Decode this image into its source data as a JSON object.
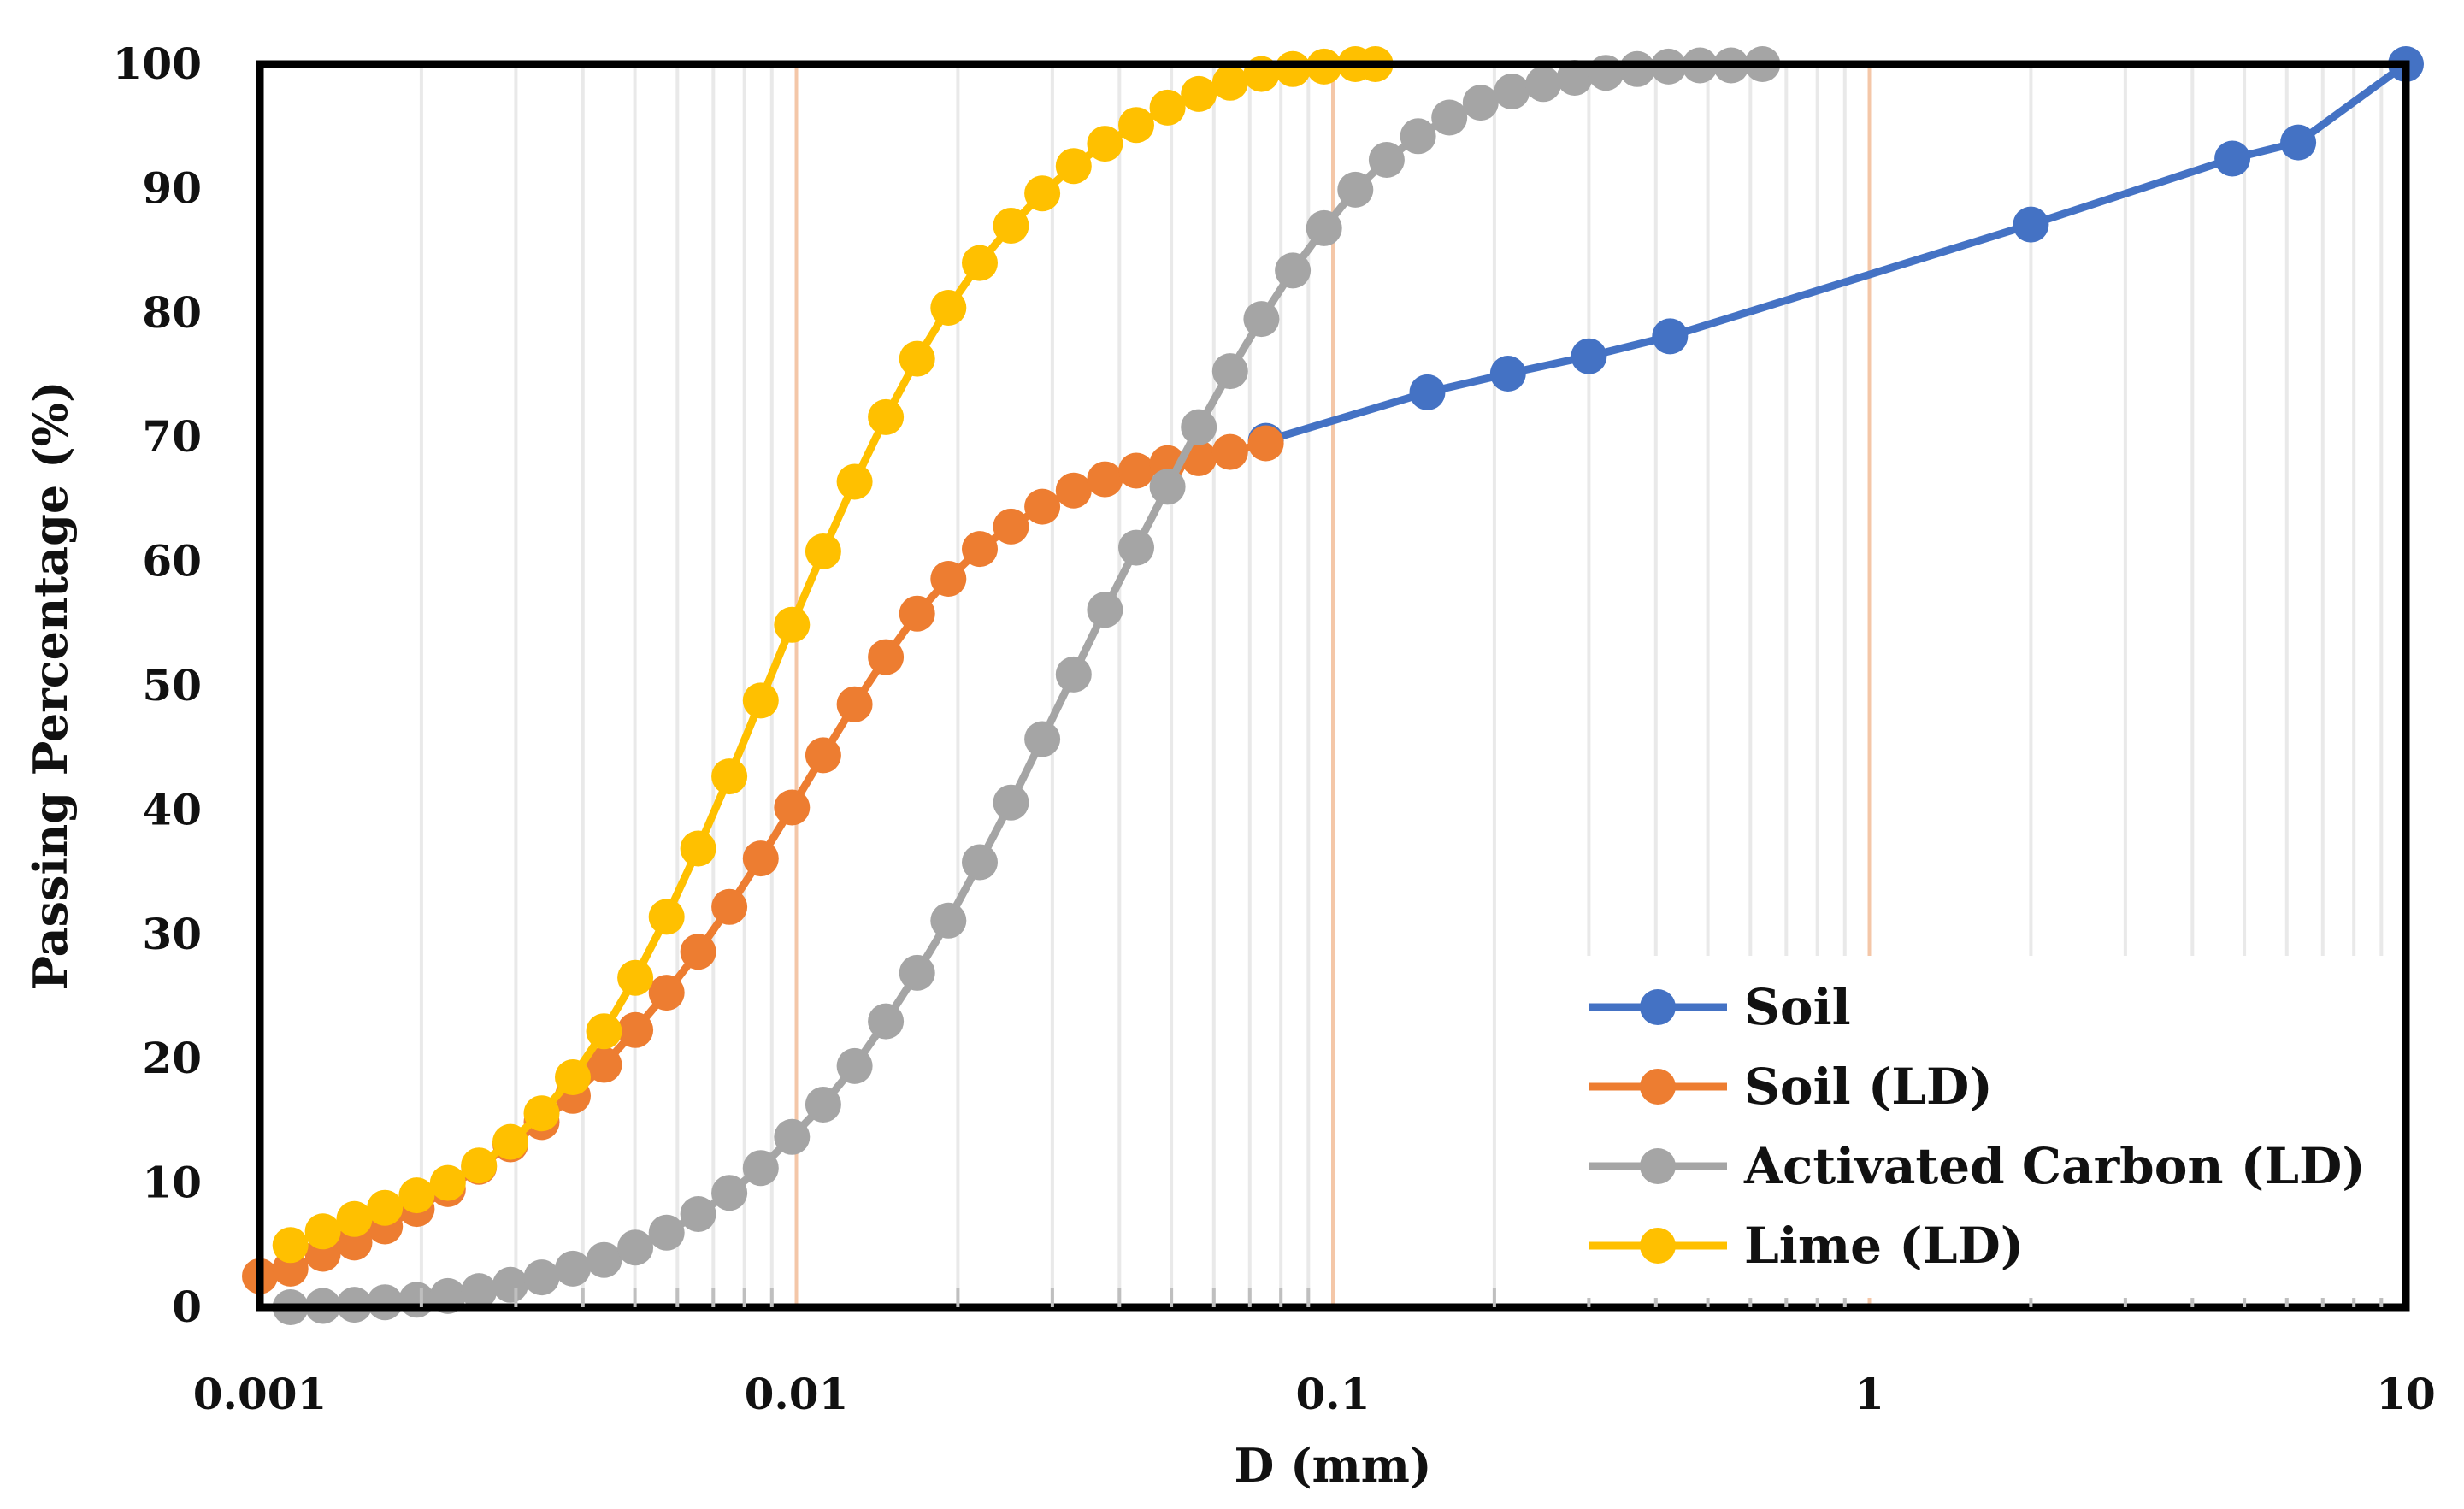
{
  "chart_data": {
    "type": "line",
    "title": "",
    "xlabel": "D (mm)",
    "ylabel": "Passing Percentage (%)",
    "xscale": "log",
    "xlim": [
      0.001,
      10
    ],
    "ylim": [
      0,
      100
    ],
    "xticks": [
      {
        "value": 0.001,
        "label": "0.001"
      },
      {
        "value": 0.01,
        "label": "0.01"
      },
      {
        "value": 0.1,
        "label": "0.1"
      },
      {
        "value": 1,
        "label": "1"
      },
      {
        "value": 10,
        "label": "10"
      }
    ],
    "yticks": [
      {
        "value": 0,
        "label": "0"
      },
      {
        "value": 10,
        "label": "10"
      },
      {
        "value": 20,
        "label": "20"
      },
      {
        "value": 30,
        "label": "30"
      },
      {
        "value": 40,
        "label": "40"
      },
      {
        "value": 50,
        "label": "50"
      },
      {
        "value": 60,
        "label": "60"
      },
      {
        "value": 70,
        "label": "70"
      },
      {
        "value": 80,
        "label": "80"
      },
      {
        "value": 90,
        "label": "90"
      },
      {
        "value": 100,
        "label": "100"
      }
    ],
    "grid": "vertical minor lines on log x-axis",
    "legend_position": "bottom-right",
    "series": [
      {
        "name": "Soil",
        "color": "#4472c4",
        "x": [
          0.075,
          0.15,
          0.212,
          0.3,
          0.425,
          2,
          4.75,
          6.3,
          10
        ],
        "y": [
          69.7,
          73.6,
          75.1,
          76.5,
          78.1,
          87.1,
          92.4,
          93.7,
          100
        ]
      },
      {
        "name": "Soil (LD)",
        "color": "#ed7d31",
        "x": [
          0.001,
          0.00114,
          0.00131,
          0.0015,
          0.00171,
          0.00196,
          0.00224,
          0.00256,
          0.00293,
          0.00335,
          0.00383,
          0.00438,
          0.00501,
          0.00573,
          0.00656,
          0.0075,
          0.00858,
          0.00981,
          0.01122,
          0.01284,
          0.01468,
          0.01679,
          0.0192,
          0.02197,
          0.02512,
          0.02873,
          0.03287,
          0.03759,
          0.043,
          0.04918,
          0.05625,
          0.06434,
          0.075
        ],
        "y": [
          2.5,
          3.1,
          4.3,
          5.2,
          6.5,
          7.9,
          9.5,
          11.3,
          13.1,
          14.9,
          17.0,
          19.5,
          22.3,
          25.3,
          28.6,
          32.2,
          36.1,
          40.2,
          44.4,
          48.5,
          52.3,
          55.8,
          58.6,
          61.0,
          62.8,
          64.4,
          65.7,
          66.6,
          67.3,
          67.9,
          68.3,
          68.8,
          69.5
        ]
      },
      {
        "name": "Activated Carbon (LD)",
        "color": "#a5a5a5",
        "x": [
          0.00114,
          0.00131,
          0.0015,
          0.00171,
          0.00196,
          0.00224,
          0.00256,
          0.00293,
          0.00335,
          0.00383,
          0.00438,
          0.00501,
          0.00573,
          0.00656,
          0.0075,
          0.00858,
          0.00981,
          0.01122,
          0.01284,
          0.01468,
          0.01679,
          0.0192,
          0.02197,
          0.02512,
          0.02873,
          0.03287,
          0.03759,
          0.043,
          0.04918,
          0.05625,
          0.06434,
          0.07359,
          0.08418,
          0.09629,
          0.11014,
          0.12598,
          0.1441,
          0.16483,
          0.18854,
          0.21566,
          0.24668,
          0.28216,
          0.32275,
          0.36918,
          0.42229,
          0.48303,
          0.55251,
          0.632
        ],
        "y": [
          0.0,
          0.1,
          0.2,
          0.4,
          0.6,
          0.9,
          1.3,
          1.8,
          2.4,
          3.1,
          3.8,
          4.8,
          6.0,
          7.5,
          9.2,
          11.2,
          13.7,
          16.3,
          19.4,
          23.0,
          26.9,
          31.1,
          35.8,
          40.6,
          45.7,
          50.9,
          56.1,
          61.1,
          66.0,
          70.8,
          75.3,
          79.5,
          83.4,
          86.8,
          89.9,
          92.3,
          94.2,
          95.7,
          96.9,
          97.8,
          98.4,
          98.9,
          99.3,
          99.6,
          99.8,
          99.9,
          99.9,
          100.0
        ]
      },
      {
        "name": "Lime (LD)",
        "color": "#ffc000",
        "x": [
          0.00114,
          0.00131,
          0.0015,
          0.00171,
          0.00196,
          0.00224,
          0.00256,
          0.00293,
          0.00335,
          0.00383,
          0.00438,
          0.00501,
          0.00573,
          0.00656,
          0.0075,
          0.00858,
          0.00981,
          0.01122,
          0.01284,
          0.01468,
          0.01679,
          0.0192,
          0.02197,
          0.02512,
          0.02873,
          0.03287,
          0.03759,
          0.043,
          0.04918,
          0.05625,
          0.06434,
          0.07359,
          0.08418,
          0.09629,
          0.11014,
          0.12
        ],
        "y": [
          5.0,
          6.1,
          7.1,
          8.0,
          9.0,
          10.0,
          11.4,
          13.3,
          15.6,
          18.5,
          22.2,
          26.5,
          31.4,
          36.9,
          42.7,
          48.8,
          54.9,
          60.8,
          66.4,
          71.6,
          76.3,
          80.4,
          84.0,
          87.0,
          89.6,
          91.8,
          93.6,
          95.1,
          96.5,
          97.6,
          98.5,
          99.2,
          99.6,
          99.8,
          100.0,
          100.0
        ]
      }
    ]
  }
}
